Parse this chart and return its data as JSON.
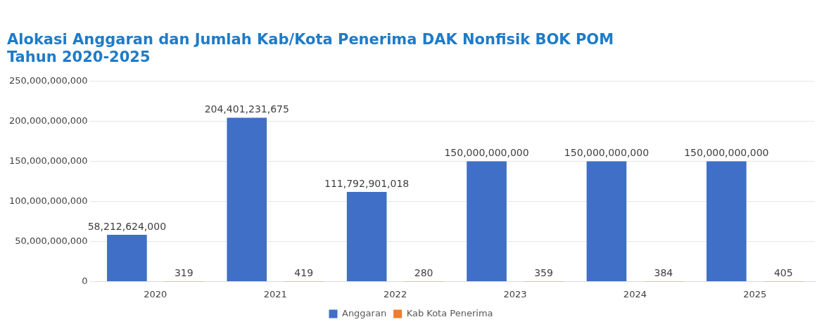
{
  "chart_data": {
    "type": "bar",
    "title": [
      "Alokasi Anggaran dan Jumlah Kab/Kota Penerima DAK Nonfisik BOK POM",
      "Tahun 2020-2025"
    ],
    "categories": [
      "2020",
      "2021",
      "2022",
      "2023",
      "2024",
      "2025"
    ],
    "series": [
      {
        "name": "Anggaran",
        "color": "#3f6fc6",
        "values": [
          58212624000,
          204401231675,
          111792901018,
          150000000000,
          150000000000,
          150000000000
        ],
        "value_labels": [
          "58,212,624,000",
          "204,401,231,675",
          "111,792,901,018",
          "150,000,000,000",
          "150,000,000,000",
          "150,000,000,000"
        ]
      },
      {
        "name": "Kab Kota Penerima",
        "color": "#ed7d31",
        "values": [
          319,
          419,
          280,
          359,
          384,
          405
        ],
        "value_labels": [
          "319",
          "419",
          "280",
          "359",
          "384",
          "405"
        ]
      }
    ],
    "ylim": [
      0,
      250000000000
    ],
    "yticks": [
      {
        "value": 0,
        "label": "0"
      },
      {
        "value": 50000000000,
        "label": "50,000,000,000"
      },
      {
        "value": 100000000000,
        "label": "100,000,000,000"
      },
      {
        "value": 150000000000,
        "label": "150,000,000,000"
      },
      {
        "value": 200000000000,
        "label": "200,000,000,000"
      },
      {
        "value": 250000000000,
        "label": "250,000,000,000"
      }
    ],
    "grid": "y",
    "legend": "bottom"
  }
}
